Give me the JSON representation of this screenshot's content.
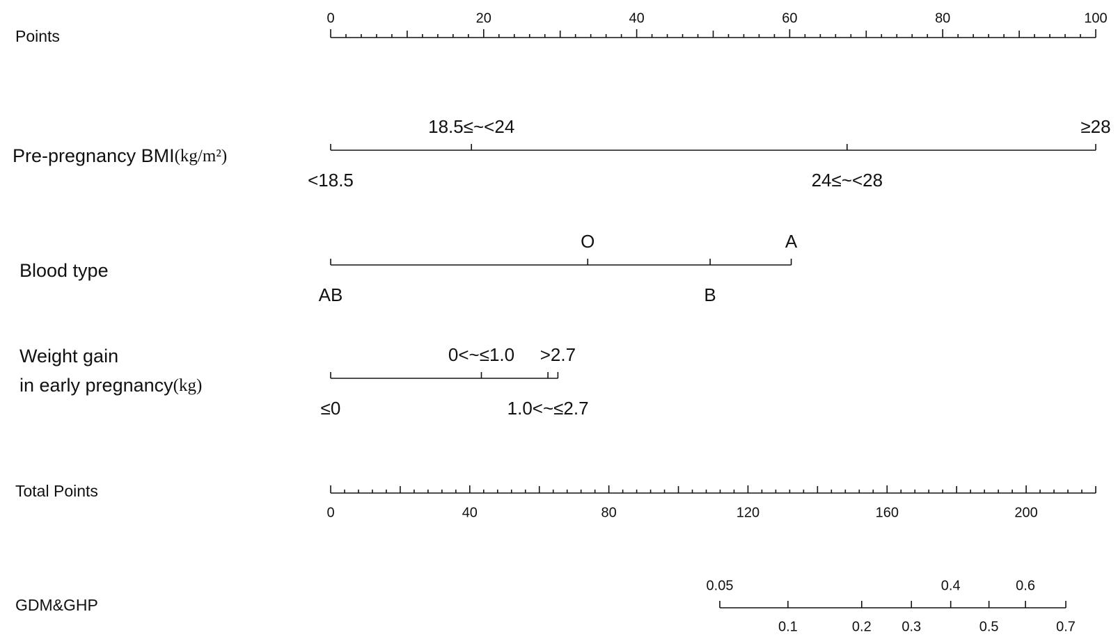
{
  "chart_data": {
    "type": "nomogram",
    "points_axis": {
      "label": "Points",
      "xlim": [
        0,
        100
      ],
      "xticks": [
        0,
        20,
        40,
        60,
        80,
        100
      ],
      "minor_ticks": [
        2,
        4,
        6,
        8,
        10,
        12,
        14,
        16,
        18,
        22,
        24,
        26,
        28,
        30,
        32,
        34,
        36,
        38,
        42,
        44,
        46,
        48,
        50,
        52,
        54,
        56,
        58,
        62,
        64,
        66,
        68,
        70,
        72,
        74,
        76,
        78,
        82,
        84,
        86,
        88,
        90,
        92,
        94,
        96,
        98
      ]
    },
    "variables": [
      {
        "label_lines": [
          "Pre-pregnancy BMI"
        ],
        "unit": "(kg/m²)",
        "levels": [
          "<18.5",
          "18.5≤~<24",
          "24≤~<28",
          "≥28"
        ],
        "points": [
          0,
          18.4,
          67.5,
          100
        ]
      },
      {
        "label_lines": [
          "Blood type"
        ],
        "levels": [
          "AB",
          "O",
          "B",
          "A"
        ],
        "points": [
          0,
          33.6,
          49.6,
          60.2
        ]
      },
      {
        "label_lines": [
          "Weight gain",
          "in early pregnancy"
        ],
        "unit": "(kg)",
        "levels": [
          "≤0",
          "0<~≤1.0",
          "1.0<~≤2.7",
          ">2.7"
        ],
        "points": [
          0,
          19.7,
          28.4,
          29.7
        ]
      }
    ],
    "total_points": {
      "label": "Total Points",
      "xlim": [
        0,
        220
      ],
      "xticks": [
        0,
        40,
        80,
        120,
        160,
        200
      ],
      "minor_ticks": [
        4,
        8,
        12,
        16,
        20,
        24,
        28,
        32,
        36,
        44,
        48,
        52,
        56,
        60,
        64,
        68,
        72,
        76,
        84,
        88,
        92,
        96,
        100,
        104,
        108,
        112,
        116,
        124,
        128,
        132,
        136,
        140,
        144,
        148,
        152,
        156,
        164,
        168,
        172,
        176,
        180,
        184,
        188,
        192,
        196,
        204,
        208,
        212,
        216,
        220
      ]
    },
    "probability": {
      "label": "GDM&GHP",
      "values": [
        0.05,
        0.1,
        0.2,
        0.3,
        0.4,
        0.5,
        0.6,
        0.7
      ],
      "total_points": [
        111.9,
        131.5,
        152.7,
        167.0,
        178.3,
        189.3,
        199.8,
        211.4
      ]
    }
  }
}
